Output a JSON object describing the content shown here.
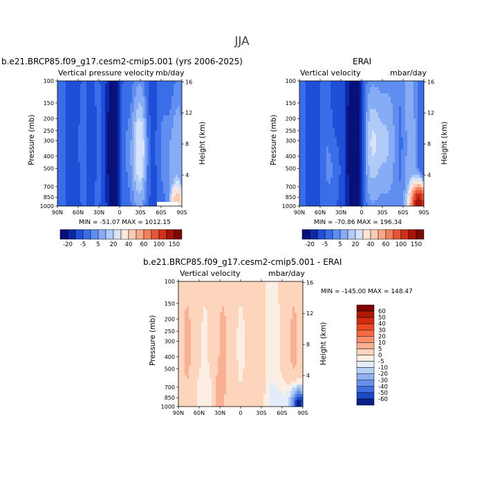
{
  "page_title": "JJA",
  "common": {
    "pressure_ticks": [
      "100",
      "150",
      "200",
      "250",
      "300",
      "400",
      "500",
      "700",
      "850",
      "1000"
    ],
    "height_ticks": [
      "16",
      "12",
      "8",
      "4"
    ],
    "lat_ticks": [
      "90N",
      "60N",
      "30N",
      "0",
      "30S",
      "60S",
      "90S"
    ],
    "ylabel_left": "Pressure (mb)",
    "ylabel_right": "Height (km)"
  },
  "panels": [
    {
      "title": "b.e21.BRCP85.f09_g17.cesm2-cmip5.001 (yrs 2006-2025)",
      "field": "Vertical pressure velocity",
      "units": "mb/day",
      "min_max": "MIN = -51.07   MAX = 1012.15"
    },
    {
      "title": "ERAI",
      "field": "Vertical velocity",
      "units": "mbar/day",
      "min_max": "MIN = -70.86   MAX = 196.34"
    },
    {
      "title": "b.e21.BRCP85.f09_g17.cesm2-cmip5.001 - ERAI",
      "field": "Vertical velocity",
      "units": "mbar/day",
      "min_max": "MIN = -145.00   MAX = 148.47"
    }
  ],
  "colorbar_top": {
    "labels": [
      "-20",
      "-5",
      "5",
      "20",
      "40",
      "60",
      "100",
      "150"
    ],
    "colors": [
      "#08107a",
      "#0a28a8",
      "#1f4fd6",
      "#3a6ee8",
      "#5f8ef0",
      "#86acf5",
      "#b0cbf7",
      "#d6e3fa",
      "#fde6d8",
      "#fbcbb3",
      "#f7a888",
      "#f2805e",
      "#e65636",
      "#cf3018",
      "#a81408",
      "#7a0a02"
    ]
  },
  "colorbar_diff": {
    "labels": [
      "60",
      "50",
      "40",
      "30",
      "20",
      "10",
      "5",
      "0",
      "-5",
      "-10",
      "-20",
      "-30",
      "-40",
      "-50",
      "-60"
    ],
    "colors": [
      "#800000",
      "#b01806",
      "#d42c10",
      "#ec4a24",
      "#f46a44",
      "#f88e6c",
      "#fab092",
      "#fdd4bc",
      "#fdeee3",
      "#e2ecfb",
      "#b9d0f6",
      "#8fb1f1",
      "#6690ea",
      "#3e6ee2",
      "#1d49c9",
      "#0a1f8a"
    ]
  },
  "chart_data": [
    {
      "type": "heatmap",
      "title": "b.e21.BRCP85.f09_g17.cesm2-cmip5.001 (yrs 2006-2025)",
      "xlabel": "",
      "ylabel": "Pressure (mb)",
      "y2label": "Height (km)",
      "x_ticks": [
        "90N",
        "60N",
        "30N",
        "0",
        "30S",
        "60S",
        "90S"
      ],
      "y_ticks": [
        100,
        150,
        200,
        250,
        300,
        400,
        500,
        700,
        850,
        1000
      ],
      "y_scale": "log",
      "y_reversed": true,
      "ylim": [
        100,
        1000
      ],
      "min": -51.07,
      "max": 1012.15
    },
    {
      "type": "heatmap",
      "title": "ERAI",
      "xlabel": "",
      "ylabel": "Pressure (mb)",
      "y2label": "Height (km)",
      "x_ticks": [
        "90N",
        "60N",
        "30N",
        "0",
        "30S",
        "60S",
        "90S"
      ],
      "y_ticks": [
        100,
        150,
        200,
        250,
        300,
        400,
        500,
        700,
        850,
        1000
      ],
      "y_scale": "log",
      "y_reversed": true,
      "ylim": [
        100,
        1000
      ],
      "min": -70.86,
      "max": 196.34
    },
    {
      "type": "heatmap",
      "title": "b.e21.BRCP85.f09_g17.cesm2-cmip5.001 - ERAI",
      "xlabel": "",
      "ylabel": "Pressure (mb)",
      "y2label": "Height (km)",
      "x_ticks": [
        "90N",
        "60N",
        "30N",
        "0",
        "30S",
        "60S",
        "90S"
      ],
      "y_ticks": [
        100,
        150,
        200,
        250,
        300,
        400,
        500,
        700,
        850,
        1000
      ],
      "y_scale": "log",
      "y_reversed": true,
      "ylim": [
        100,
        1000
      ],
      "min": -145.0,
      "max": 148.47
    }
  ]
}
